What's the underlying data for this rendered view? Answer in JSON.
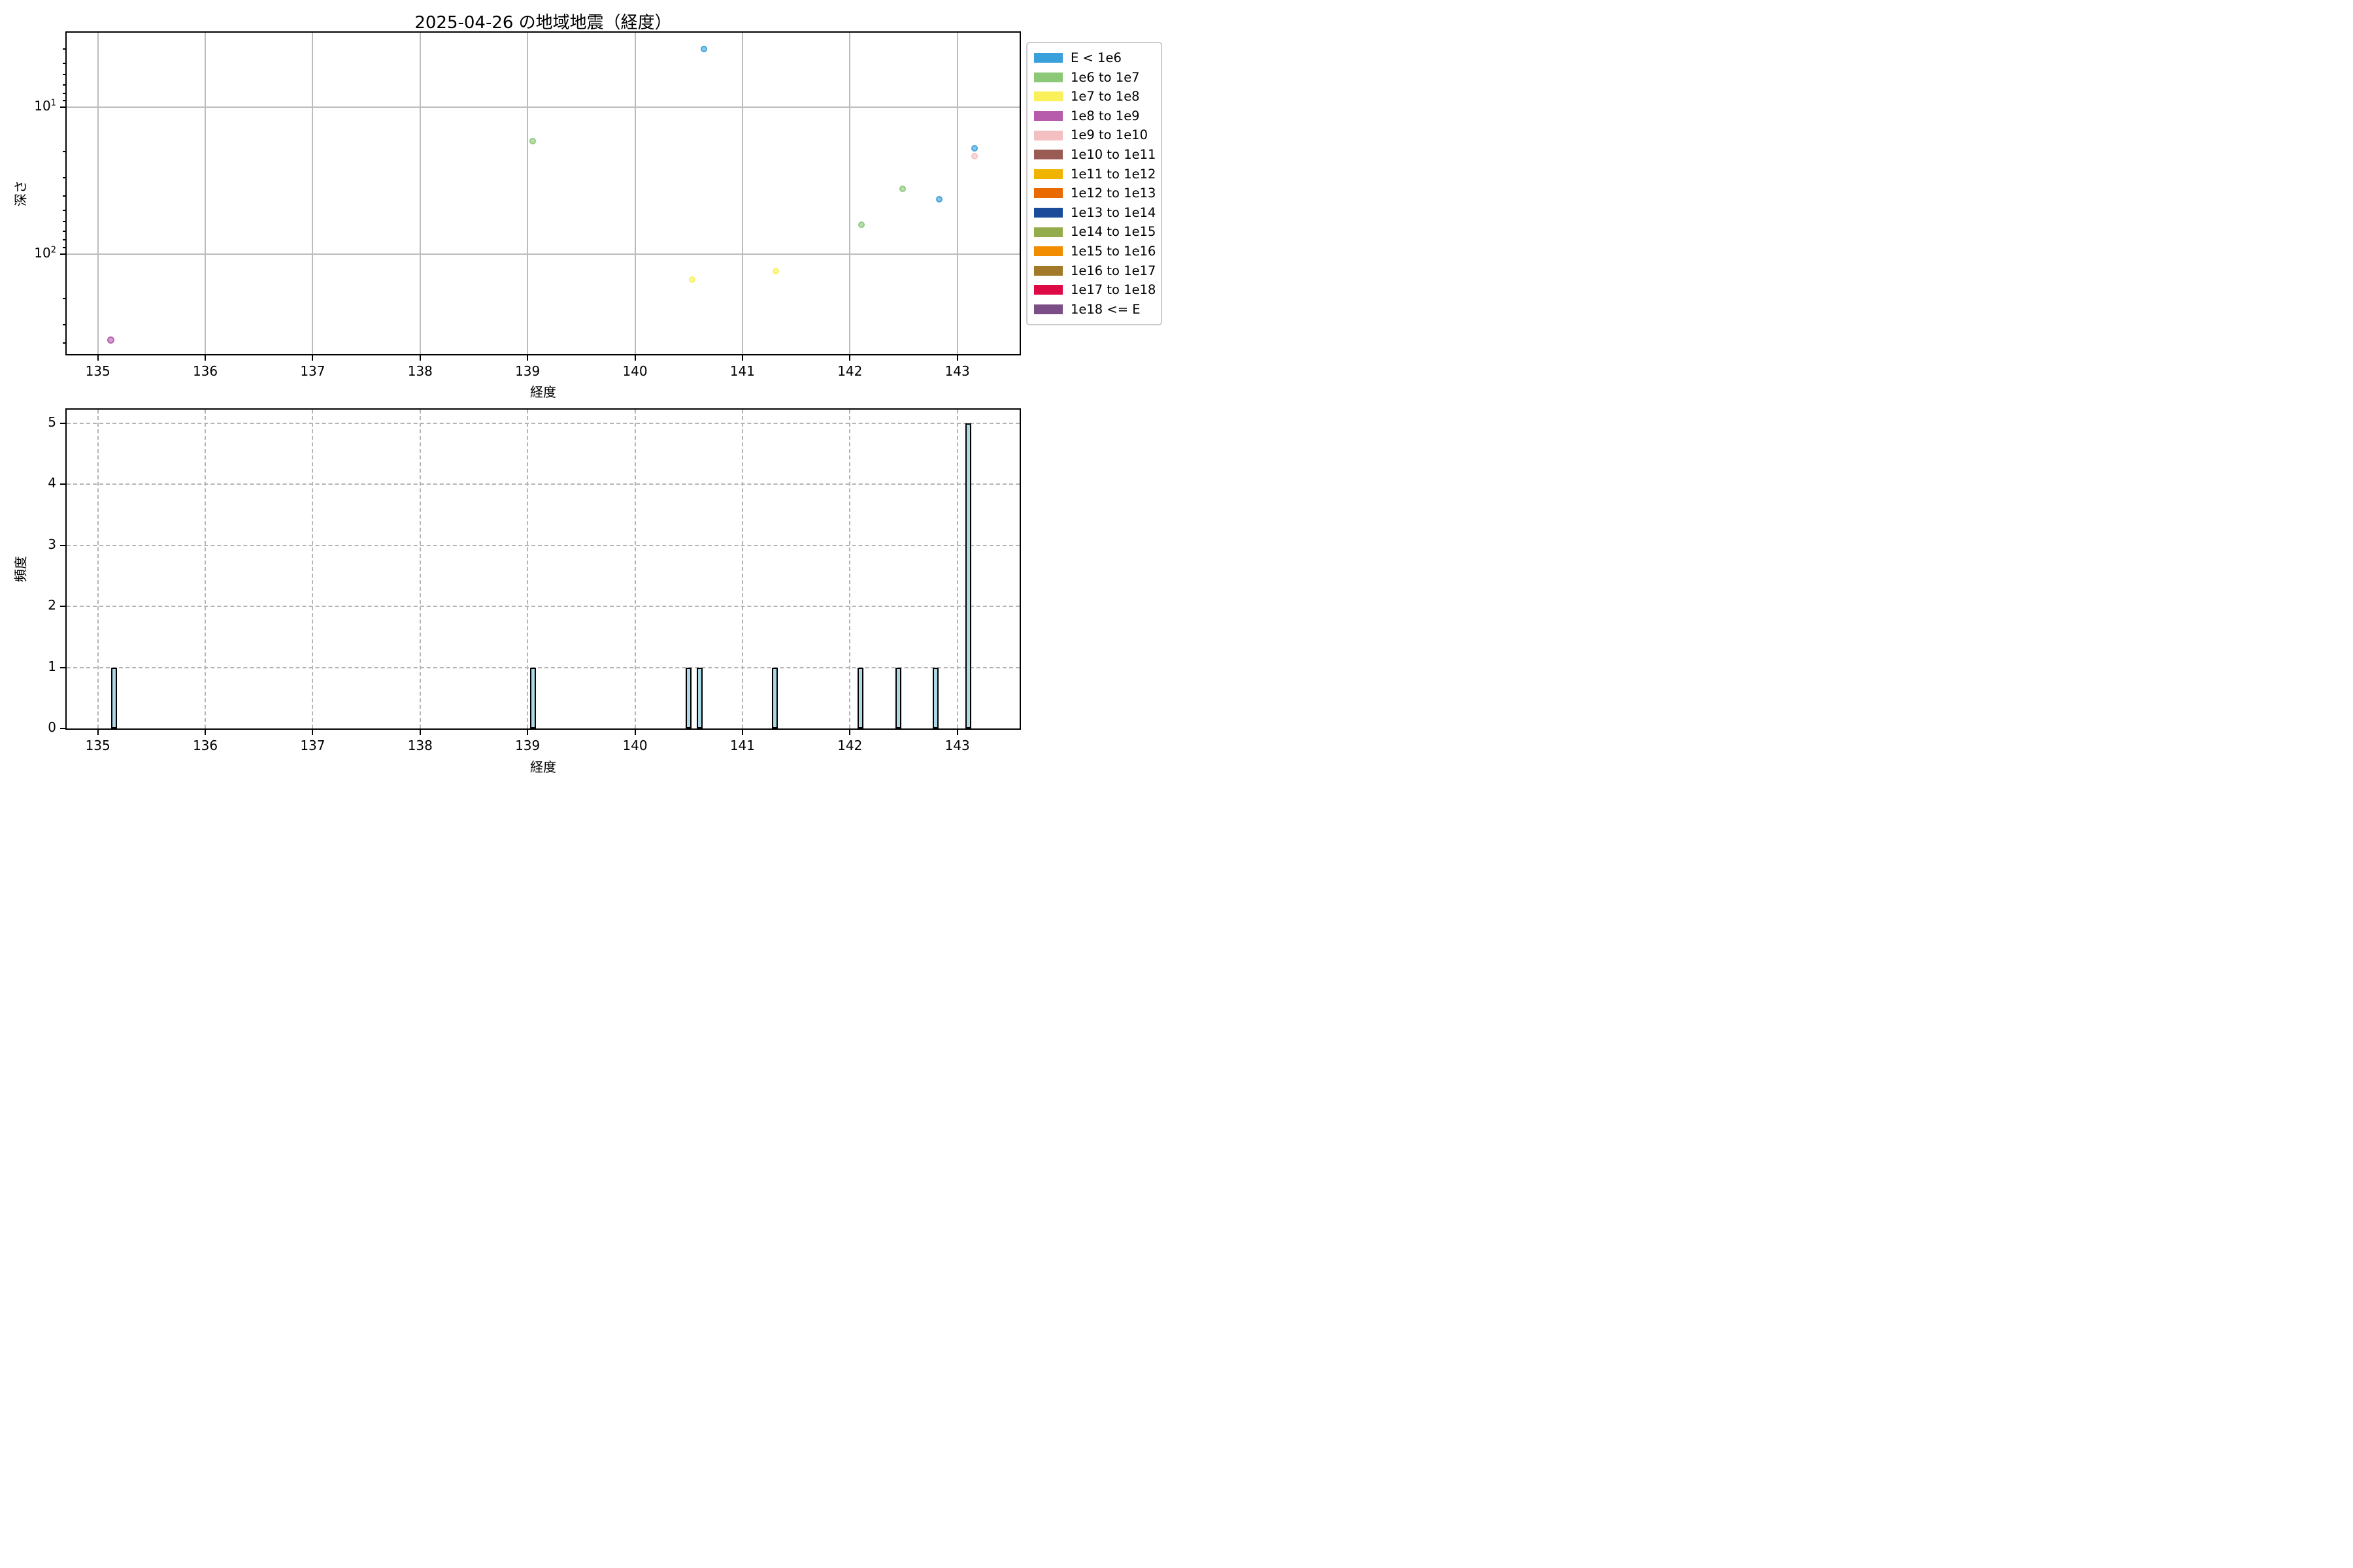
{
  "figure": {
    "title": "2025-04-26 の地域地震（経度）",
    "background": "#ffffff"
  },
  "legend": {
    "entries": [
      {
        "label": "E < 1e6",
        "color": "#3aa0dc"
      },
      {
        "label": "1e6 to 1e7",
        "color": "#8dc878"
      },
      {
        "label": "1e7 to 1e8",
        "color": "#f9f05a"
      },
      {
        "label": "1e8 to 1e9",
        "color": "#b75bad"
      },
      {
        "label": "1e9 to 1e10",
        "color": "#f4bfc0"
      },
      {
        "label": "1e10 to 1e11",
        "color": "#9b5b55"
      },
      {
        "label": "1e11 to 1e12",
        "color": "#f0b400"
      },
      {
        "label": "1e12 to 1e13",
        "color": "#e86a00"
      },
      {
        "label": "1e13 to 1e14",
        "color": "#1c4c99"
      },
      {
        "label": "1e14 to 1e15",
        "color": "#95ac4d"
      },
      {
        "label": "1e15 to 1e16",
        "color": "#f28c00"
      },
      {
        "label": "1e16 to 1e17",
        "color": "#a17928"
      },
      {
        "label": "1e17 to 1e18",
        "color": "#dd0a46"
      },
      {
        "label": "1e18 <= E",
        "color": "#7c4e87"
      }
    ]
  },
  "chart_data": [
    {
      "type": "scatter",
      "title": "2025-04-26 の地域地震（経度）",
      "xlabel": "経度",
      "ylabel": "深さ",
      "x_ticks": [
        135,
        136,
        137,
        138,
        139,
        140,
        141,
        142,
        143
      ],
      "xlim": [
        134.71,
        143.58
      ],
      "y_axis": {
        "scale": "log",
        "inverted": true,
        "decade_ticks": [
          10,
          100
        ],
        "visible_range": [
          3.1,
          478
        ]
      },
      "grid": "solid",
      "legend_title_note": "points colored by energy bin E",
      "points": [
        {
          "lon": 135.12,
          "depth": 383,
          "energy_bin": "1e8 to 1e9",
          "color": "#b75bad"
        },
        {
          "lon": 139.05,
          "depth": 17,
          "energy_bin": "1e6 to 1e7",
          "color": "#8dc878"
        },
        {
          "lon": 140.53,
          "depth": 149,
          "energy_bin": "1e7 to 1e8",
          "color": "#f9f05a"
        },
        {
          "lon": 140.64,
          "depth": 4.0,
          "energy_bin": "E < 1e6",
          "color": "#3aa0dc"
        },
        {
          "lon": 141.31,
          "depth": 130,
          "energy_bin": "1e7 to 1e8",
          "color": "#f9f05a"
        },
        {
          "lon": 142.11,
          "depth": 63,
          "energy_bin": "1e6 to 1e7",
          "color": "#8dc878"
        },
        {
          "lon": 142.49,
          "depth": 36,
          "energy_bin": "1e6 to 1e7",
          "color": "#8dc878"
        },
        {
          "lon": 142.83,
          "depth": 42,
          "energy_bin": "E < 1e6",
          "color": "#3aa0dc"
        },
        {
          "lon": 143.16,
          "depth": 19,
          "energy_bin": "E < 1e6",
          "color": "#3aa0dc"
        },
        {
          "lon": 143.16,
          "depth": 21.5,
          "energy_bin": "1e9 to 1e10",
          "color": "#f4bfc0"
        }
      ]
    },
    {
      "type": "bar",
      "xlabel": "経度",
      "ylabel": "頻度",
      "x_ticks": [
        135,
        136,
        137,
        138,
        139,
        140,
        141,
        142,
        143
      ],
      "y_ticks": [
        0,
        1,
        2,
        3,
        4,
        5
      ],
      "xlim": [
        134.71,
        143.58
      ],
      "ylim": [
        0,
        5.22
      ],
      "grid": "dashed",
      "bar_fill": "#add8e6",
      "bar_edge": "#000000",
      "bar_width_lon": 0.055,
      "bars": [
        {
          "lon": 135.15,
          "count": 1
        },
        {
          "lon": 139.05,
          "count": 1
        },
        {
          "lon": 140.5,
          "count": 1
        },
        {
          "lon": 140.6,
          "count": 1
        },
        {
          "lon": 141.3,
          "count": 1
        },
        {
          "lon": 142.1,
          "count": 1
        },
        {
          "lon": 142.45,
          "count": 1
        },
        {
          "lon": 142.8,
          "count": 1
        },
        {
          "lon": 143.1,
          "count": 5
        }
      ]
    }
  ]
}
